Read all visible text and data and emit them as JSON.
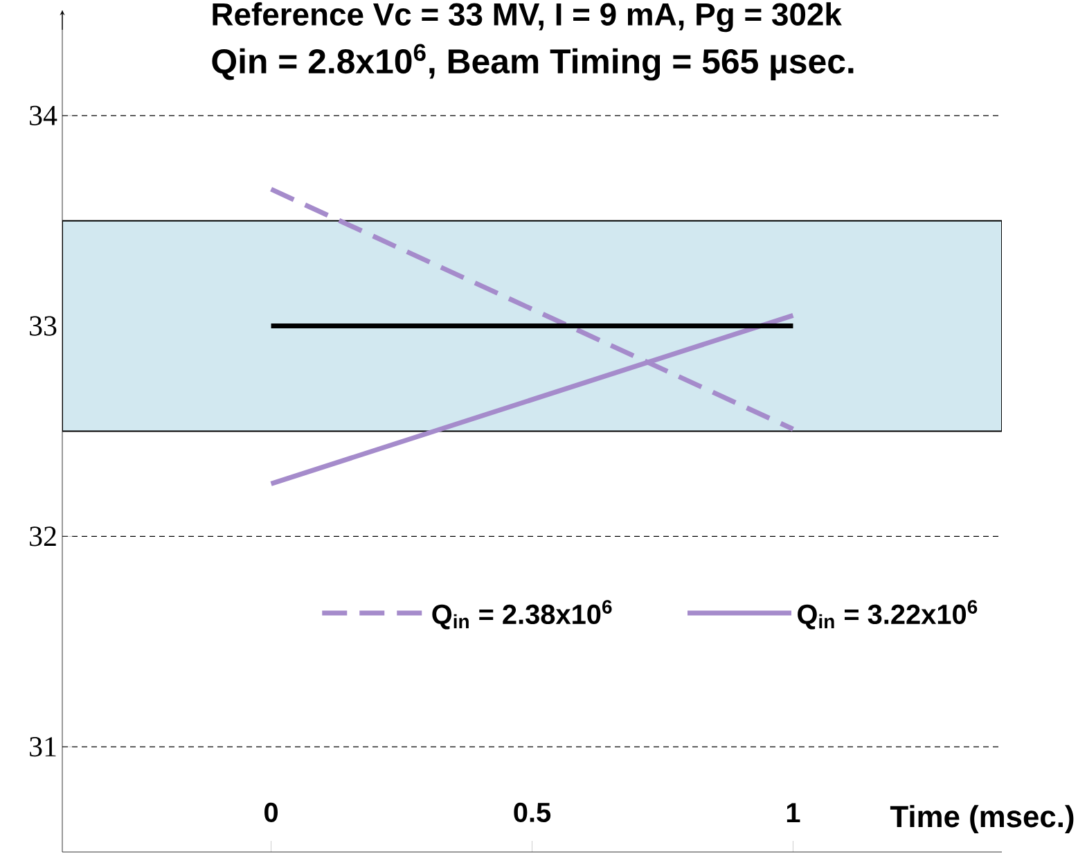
{
  "chart_data": {
    "type": "line",
    "title": "Reference Vc = 33 MV, I = 9 mA, Pg = 302k",
    "subtitle": "Qin = 2.8x10$^{6}$, Beam Timing =  565 µsec.",
    "xlabel": "Time (msec.)",
    "xlim": [
      -0.4,
      1.4
    ],
    "xticks": [
      0,
      0.5,
      1
    ],
    "ylim": [
      30.5,
      34.5
    ],
    "yticks": [
      34,
      33,
      32,
      31
    ],
    "x": [
      0,
      1
    ],
    "grid": "y",
    "legend": "bottom",
    "bands": [
      {
        "axis": "y",
        "from": 32.5,
        "to": 33.5,
        "color": "#d2e8f0"
      }
    ],
    "series": [
      {
        "name": "Q$_{in}$ = 2.38x10$^{6}$",
        "color": "#a58bcb",
        "line_style": "dashed",
        "values": [
          33.65,
          32.51
        ]
      },
      {
        "name": "Q$_{in}$ = 3.22x10$^{6}$",
        "color": "#a58bcb",
        "line_style": "solid",
        "values": [
          32.25,
          33.05
        ]
      },
      {
        "color": "#000000",
        "line_style": "solid",
        "values": [
          33,
          33
        ]
      }
    ]
  }
}
